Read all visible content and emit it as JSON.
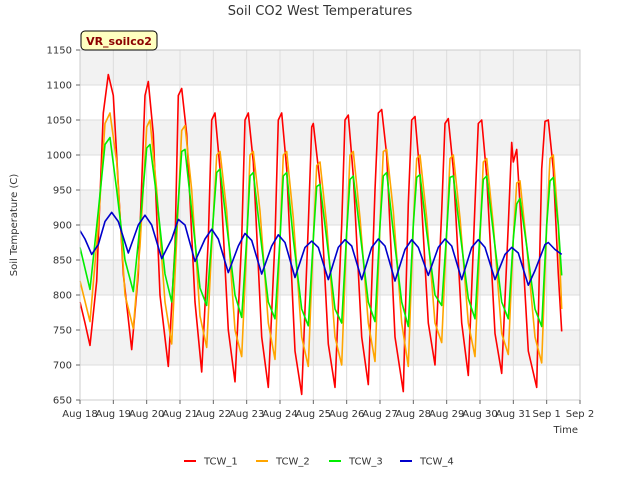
{
  "chart_data": {
    "type": "line",
    "title": "Soil CO2 West Temperatures",
    "site_label": "VR_soilco2",
    "xlabel": "Time",
    "ylabel": "Soil Temperature (C)",
    "x_ticks": [
      "Aug 18",
      "Aug 19",
      "Aug 20",
      "Aug 21",
      "Aug 22",
      "Aug 23",
      "Aug 24",
      "Aug 25",
      "Aug 26",
      "Aug 27",
      "Aug 28",
      "Aug 29",
      "Aug 30",
      "Aug 31",
      "Sep 1",
      "Sep 2"
    ],
    "y_ticks": [
      650,
      700,
      750,
      800,
      850,
      900,
      950,
      1000,
      1050,
      1100,
      1150
    ],
    "ylim": [
      650,
      1150
    ],
    "grid": true,
    "legend_position": "bottom",
    "series": [
      {
        "name": "TCW_1",
        "color": "#ff0000",
        "points": [
          [
            0.0,
            790
          ],
          [
            0.15,
            760
          ],
          [
            0.3,
            728
          ],
          [
            0.5,
            820
          ],
          [
            0.7,
            1060
          ],
          [
            0.85,
            1115
          ],
          [
            1.0,
            1085
          ],
          [
            1.3,
            830
          ],
          [
            1.55,
            722
          ],
          [
            1.75,
            830
          ],
          [
            1.95,
            1085
          ],
          [
            2.05,
            1105
          ],
          [
            2.2,
            1030
          ],
          [
            2.4,
            800
          ],
          [
            2.65,
            698
          ],
          [
            2.85,
            870
          ],
          [
            2.95,
            1085
          ],
          [
            3.05,
            1095
          ],
          [
            3.2,
            1030
          ],
          [
            3.45,
            790
          ],
          [
            3.65,
            690
          ],
          [
            3.85,
            880
          ],
          [
            3.95,
            1050
          ],
          [
            4.05,
            1060
          ],
          [
            4.2,
            980
          ],
          [
            4.45,
            750
          ],
          [
            4.65,
            676
          ],
          [
            4.85,
            880
          ],
          [
            4.95,
            1050
          ],
          [
            5.05,
            1060
          ],
          [
            5.2,
            990
          ],
          [
            5.45,
            740
          ],
          [
            5.65,
            668
          ],
          [
            5.85,
            880
          ],
          [
            5.95,
            1050
          ],
          [
            6.05,
            1060
          ],
          [
            6.2,
            980
          ],
          [
            6.45,
            720
          ],
          [
            6.65,
            658
          ],
          [
            6.85,
            900
          ],
          [
            6.95,
            1040
          ],
          [
            7.0,
            1045
          ],
          [
            7.2,
            960
          ],
          [
            7.45,
            730
          ],
          [
            7.65,
            668
          ],
          [
            7.85,
            900
          ],
          [
            7.95,
            1050
          ],
          [
            8.05,
            1057
          ],
          [
            8.2,
            970
          ],
          [
            8.45,
            740
          ],
          [
            8.65,
            672
          ],
          [
            8.85,
            950
          ],
          [
            8.95,
            1060
          ],
          [
            9.05,
            1065
          ],
          [
            9.2,
            1000
          ],
          [
            9.45,
            740
          ],
          [
            9.7,
            662
          ],
          [
            9.85,
            930
          ],
          [
            9.95,
            1050
          ],
          [
            10.05,
            1055
          ],
          [
            10.2,
            970
          ],
          [
            10.45,
            760
          ],
          [
            10.65,
            700
          ],
          [
            10.85,
            920
          ],
          [
            10.95,
            1045
          ],
          [
            11.05,
            1052
          ],
          [
            11.2,
            980
          ],
          [
            11.45,
            760
          ],
          [
            11.65,
            685
          ],
          [
            11.85,
            930
          ],
          [
            11.95,
            1045
          ],
          [
            12.05,
            1050
          ],
          [
            12.2,
            970
          ],
          [
            12.45,
            745
          ],
          [
            12.65,
            688
          ],
          [
            12.85,
            900
          ],
          [
            12.95,
            1018
          ],
          [
            13.0,
            990
          ],
          [
            13.1,
            1008
          ],
          [
            13.2,
            930
          ],
          [
            13.45,
            720
          ],
          [
            13.7,
            668
          ],
          [
            13.85,
            980
          ],
          [
            13.95,
            1048
          ],
          [
            14.05,
            1050
          ],
          [
            14.2,
            980
          ],
          [
            14.35,
            830
          ],
          [
            14.45,
            748
          ]
        ]
      },
      {
        "name": "TCW_2",
        "color": "#ffa500",
        "points": [
          [
            0.0,
            820
          ],
          [
            0.3,
            762
          ],
          [
            0.55,
            900
          ],
          [
            0.75,
            1045
          ],
          [
            0.9,
            1060
          ],
          [
            1.1,
            990
          ],
          [
            1.35,
            800
          ],
          [
            1.6,
            752
          ],
          [
            1.8,
            870
          ],
          [
            2.0,
            1040
          ],
          [
            2.1,
            1050
          ],
          [
            2.3,
            950
          ],
          [
            2.55,
            790
          ],
          [
            2.75,
            730
          ],
          [
            2.9,
            880
          ],
          [
            3.05,
            1035
          ],
          [
            3.15,
            1042
          ],
          [
            3.35,
            950
          ],
          [
            3.6,
            770
          ],
          [
            3.8,
            725
          ],
          [
            3.95,
            870
          ],
          [
            4.1,
            1000
          ],
          [
            4.2,
            1005
          ],
          [
            4.4,
            920
          ],
          [
            4.65,
            750
          ],
          [
            4.85,
            712
          ],
          [
            5.0,
            870
          ],
          [
            5.1,
            1000
          ],
          [
            5.2,
            1005
          ],
          [
            5.4,
            920
          ],
          [
            5.65,
            760
          ],
          [
            5.85,
            708
          ],
          [
            6.0,
            880
          ],
          [
            6.1,
            1000
          ],
          [
            6.2,
            1005
          ],
          [
            6.4,
            910
          ],
          [
            6.65,
            740
          ],
          [
            6.85,
            698
          ],
          [
            7.0,
            880
          ],
          [
            7.1,
            985
          ],
          [
            7.2,
            990
          ],
          [
            7.4,
            900
          ],
          [
            7.65,
            740
          ],
          [
            7.85,
            700
          ],
          [
            8.0,
            890
          ],
          [
            8.1,
            1000
          ],
          [
            8.2,
            1005
          ],
          [
            8.4,
            910
          ],
          [
            8.65,
            760
          ],
          [
            8.85,
            705
          ],
          [
            9.0,
            900
          ],
          [
            9.1,
            1005
          ],
          [
            9.2,
            1008
          ],
          [
            9.4,
            920
          ],
          [
            9.65,
            760
          ],
          [
            9.85,
            698
          ],
          [
            10.0,
            900
          ],
          [
            10.1,
            995
          ],
          [
            10.2,
            1000
          ],
          [
            10.4,
            910
          ],
          [
            10.65,
            760
          ],
          [
            10.85,
            732
          ],
          [
            11.0,
            890
          ],
          [
            11.1,
            995
          ],
          [
            11.2,
            1000
          ],
          [
            11.4,
            910
          ],
          [
            11.65,
            760
          ],
          [
            11.85,
            712
          ],
          [
            12.0,
            880
          ],
          [
            12.1,
            990
          ],
          [
            12.2,
            995
          ],
          [
            12.4,
            900
          ],
          [
            12.65,
            745
          ],
          [
            12.85,
            715
          ],
          [
            13.0,
            880
          ],
          [
            13.1,
            960
          ],
          [
            13.2,
            963
          ],
          [
            13.4,
            870
          ],
          [
            13.65,
            740
          ],
          [
            13.85,
            703
          ],
          [
            14.0,
            900
          ],
          [
            14.1,
            995
          ],
          [
            14.2,
            1000
          ],
          [
            14.35,
            900
          ],
          [
            14.45,
            780
          ]
        ]
      },
      {
        "name": "TCW_3",
        "color": "#00ee00",
        "points": [
          [
            0.0,
            868
          ],
          [
            0.3,
            808
          ],
          [
            0.55,
            920
          ],
          [
            0.75,
            1015
          ],
          [
            0.9,
            1025
          ],
          [
            1.1,
            950
          ],
          [
            1.35,
            850
          ],
          [
            1.6,
            805
          ],
          [
            1.8,
            900
          ],
          [
            2.0,
            1010
          ],
          [
            2.1,
            1015
          ],
          [
            2.3,
            940
          ],
          [
            2.55,
            830
          ],
          [
            2.75,
            790
          ],
          [
            2.9,
            900
          ],
          [
            3.05,
            1005
          ],
          [
            3.15,
            1008
          ],
          [
            3.35,
            920
          ],
          [
            3.6,
            810
          ],
          [
            3.8,
            785
          ],
          [
            3.95,
            880
          ],
          [
            4.1,
            975
          ],
          [
            4.2,
            980
          ],
          [
            4.4,
            900
          ],
          [
            4.65,
            800
          ],
          [
            4.85,
            768
          ],
          [
            5.0,
            880
          ],
          [
            5.1,
            970
          ],
          [
            5.2,
            975
          ],
          [
            5.4,
            890
          ],
          [
            5.65,
            790
          ],
          [
            5.85,
            766
          ],
          [
            6.0,
            880
          ],
          [
            6.1,
            970
          ],
          [
            6.2,
            975
          ],
          [
            6.4,
            880
          ],
          [
            6.65,
            780
          ],
          [
            6.85,
            756
          ],
          [
            7.0,
            880
          ],
          [
            7.1,
            955
          ],
          [
            7.2,
            958
          ],
          [
            7.4,
            880
          ],
          [
            7.65,
            780
          ],
          [
            7.85,
            760
          ],
          [
            8.0,
            890
          ],
          [
            8.1,
            965
          ],
          [
            8.2,
            970
          ],
          [
            8.4,
            890
          ],
          [
            8.65,
            790
          ],
          [
            8.85,
            762
          ],
          [
            9.0,
            900
          ],
          [
            9.1,
            970
          ],
          [
            9.2,
            975
          ],
          [
            9.4,
            890
          ],
          [
            9.65,
            790
          ],
          [
            9.85,
            755
          ],
          [
            10.0,
            900
          ],
          [
            10.1,
            968
          ],
          [
            10.2,
            972
          ],
          [
            10.4,
            890
          ],
          [
            10.65,
            800
          ],
          [
            10.85,
            785
          ],
          [
            11.0,
            890
          ],
          [
            11.1,
            968
          ],
          [
            11.2,
            970
          ],
          [
            11.4,
            890
          ],
          [
            11.65,
            795
          ],
          [
            11.85,
            766
          ],
          [
            12.0,
            890
          ],
          [
            12.1,
            965
          ],
          [
            12.2,
            970
          ],
          [
            12.4,
            890
          ],
          [
            12.65,
            790
          ],
          [
            12.85,
            766
          ],
          [
            13.0,
            880
          ],
          [
            13.1,
            930
          ],
          [
            13.2,
            938
          ],
          [
            13.4,
            870
          ],
          [
            13.65,
            780
          ],
          [
            13.85,
            755
          ],
          [
            14.0,
            900
          ],
          [
            14.1,
            963
          ],
          [
            14.2,
            968
          ],
          [
            14.35,
            900
          ],
          [
            14.45,
            828
          ]
        ]
      },
      {
        "name": "TCW_4",
        "color": "#0000cc",
        "points": [
          [
            0.0,
            892
          ],
          [
            0.15,
            880
          ],
          [
            0.35,
            858
          ],
          [
            0.55,
            872
          ],
          [
            0.75,
            905
          ],
          [
            0.95,
            918
          ],
          [
            1.15,
            905
          ],
          [
            1.45,
            860
          ],
          [
            1.75,
            900
          ],
          [
            1.95,
            914
          ],
          [
            2.15,
            900
          ],
          [
            2.45,
            852
          ],
          [
            2.75,
            880
          ],
          [
            2.95,
            908
          ],
          [
            3.15,
            900
          ],
          [
            3.45,
            848
          ],
          [
            3.75,
            880
          ],
          [
            3.95,
            894
          ],
          [
            4.15,
            880
          ],
          [
            4.45,
            832
          ],
          [
            4.75,
            870
          ],
          [
            4.95,
            888
          ],
          [
            5.15,
            878
          ],
          [
            5.45,
            830
          ],
          [
            5.75,
            870
          ],
          [
            5.95,
            886
          ],
          [
            6.15,
            875
          ],
          [
            6.45,
            825
          ],
          [
            6.75,
            868
          ],
          [
            6.95,
            877
          ],
          [
            7.15,
            868
          ],
          [
            7.45,
            822
          ],
          [
            7.75,
            868
          ],
          [
            7.95,
            879
          ],
          [
            8.15,
            870
          ],
          [
            8.45,
            822
          ],
          [
            8.75,
            868
          ],
          [
            8.95,
            880
          ],
          [
            9.15,
            870
          ],
          [
            9.45,
            820
          ],
          [
            9.75,
            865
          ],
          [
            9.95,
            879
          ],
          [
            10.15,
            868
          ],
          [
            10.45,
            828
          ],
          [
            10.75,
            868
          ],
          [
            10.95,
            880
          ],
          [
            11.15,
            870
          ],
          [
            11.45,
            822
          ],
          [
            11.75,
            868
          ],
          [
            11.95,
            879
          ],
          [
            12.15,
            868
          ],
          [
            12.45,
            822
          ],
          [
            12.75,
            858
          ],
          [
            12.95,
            868
          ],
          [
            13.15,
            860
          ],
          [
            13.45,
            814
          ],
          [
            13.65,
            835
          ],
          [
            13.95,
            872
          ],
          [
            14.05,
            875
          ],
          [
            14.25,
            865
          ],
          [
            14.45,
            858
          ]
        ]
      }
    ]
  }
}
